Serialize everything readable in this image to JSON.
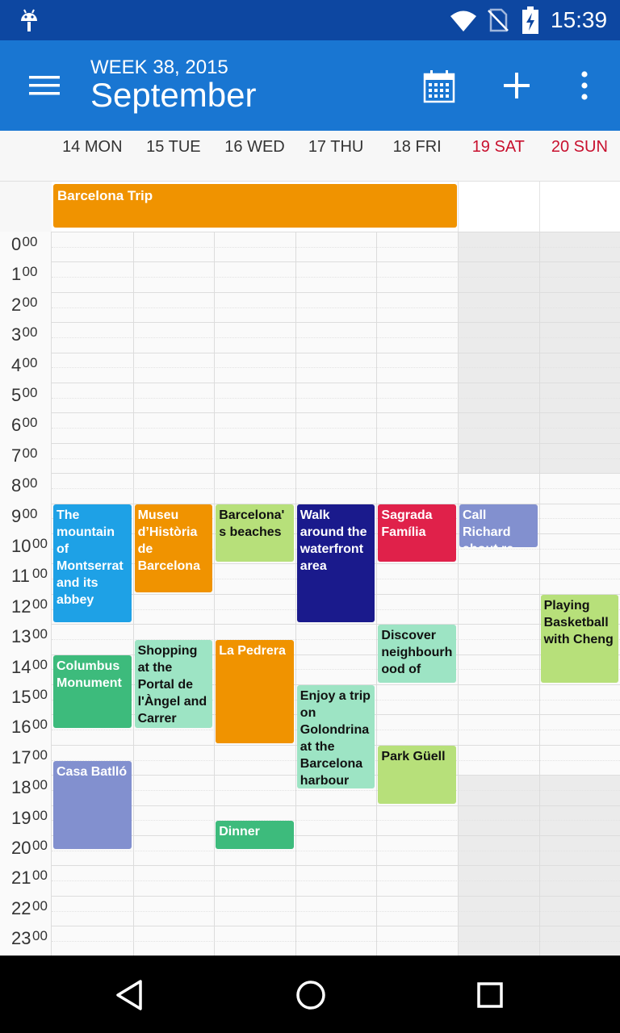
{
  "status_bar": {
    "time": "15:39"
  },
  "app_bar": {
    "subtitle": "WEEK 38, 2015",
    "title": "September"
  },
  "days": [
    {
      "label": "14 MON",
      "weekend": false
    },
    {
      "label": "15 TUE",
      "weekend": false
    },
    {
      "label": "16 WED",
      "weekend": false
    },
    {
      "label": "17 THU",
      "weekend": false
    },
    {
      "label": "18 FRI",
      "weekend": false
    },
    {
      "label": "19 SAT",
      "weekend": true
    },
    {
      "label": "20 SUN",
      "weekend": true
    }
  ],
  "all_day_events": [
    {
      "title": "Barcelona Trip",
      "start_day": 0,
      "end_day": 4,
      "color": "#f09300"
    }
  ],
  "hours": [
    {
      "h": "0",
      "m": "00"
    },
    {
      "h": "1",
      "m": "00"
    },
    {
      "h": "2",
      "m": "00"
    },
    {
      "h": "3",
      "m": "00"
    },
    {
      "h": "4",
      "m": "00"
    },
    {
      "h": "5",
      "m": "00"
    },
    {
      "h": "6",
      "m": "00"
    },
    {
      "h": "7",
      "m": "00"
    },
    {
      "h": "8",
      "m": "00"
    },
    {
      "h": "9",
      "m": "00"
    },
    {
      "h": "10",
      "m": "00"
    },
    {
      "h": "11",
      "m": "00"
    },
    {
      "h": "12",
      "m": "00"
    },
    {
      "h": "13",
      "m": "00"
    },
    {
      "h": "14",
      "m": "00"
    },
    {
      "h": "15",
      "m": "00"
    },
    {
      "h": "16",
      "m": "00"
    },
    {
      "h": "17",
      "m": "00"
    },
    {
      "h": "18",
      "m": "00"
    },
    {
      "h": "19",
      "m": "00"
    },
    {
      "h": "20",
      "m": "00"
    },
    {
      "h": "21",
      "m": "00"
    },
    {
      "h": "22",
      "m": "00"
    },
    {
      "h": "23",
      "m": "00"
    }
  ],
  "events": [
    {
      "day": 0,
      "start": 9.0,
      "end": 13.0,
      "title": "The mountain of Montserrat and its abbey",
      "color": "#1ea1e6",
      "text": "dark"
    },
    {
      "day": 0,
      "start": 14.0,
      "end": 16.5,
      "title": "Columbus Monument",
      "color": "#3dbb7c",
      "text": "dark"
    },
    {
      "day": 0,
      "start": 17.5,
      "end": 20.5,
      "title": "Casa Batlló",
      "color": "#8290cf",
      "text": "dark"
    },
    {
      "day": 1,
      "start": 9.0,
      "end": 12.0,
      "title": "Museu d’Història de Barcelona",
      "color": "#f09300",
      "text": "dark"
    },
    {
      "day": 1,
      "start": 13.5,
      "end": 16.5,
      "title": "Shopping at the Portal de l'Àngel and Carrer",
      "color": "#9de4c4",
      "text": "light"
    },
    {
      "day": 2,
      "start": 9.0,
      "end": 11.0,
      "title": "Barcelona's beaches",
      "color": "#b7e07a",
      "text": "light"
    },
    {
      "day": 2,
      "start": 13.5,
      "end": 17.0,
      "title": "La Pedrera",
      "color": "#f09300",
      "text": "dark"
    },
    {
      "day": 2,
      "start": 19.5,
      "end": 20.5,
      "title": "Dinner",
      "color": "#3dbb7c",
      "text": "dark"
    },
    {
      "day": 3,
      "start": 9.0,
      "end": 13.0,
      "title": "Walk around the waterfront area",
      "color": "#1a1a8c",
      "text": "dark"
    },
    {
      "day": 3,
      "start": 15.0,
      "end": 18.5,
      "title": "Enjoy a trip on Golondrina at the Barcelona harbour",
      "color": "#9de4c4",
      "text": "light"
    },
    {
      "day": 4,
      "start": 9.0,
      "end": 11.0,
      "title": "Sagrada Família",
      "color": "#e0214a",
      "text": "dark"
    },
    {
      "day": 4,
      "start": 13.0,
      "end": 15.0,
      "title": "Discover neighbourhood of",
      "color": "#9de4c4",
      "text": "light"
    },
    {
      "day": 4,
      "start": 17.0,
      "end": 19.0,
      "title": "Park Güell",
      "color": "#b7e07a",
      "text": "light"
    },
    {
      "day": 5,
      "start": 9.0,
      "end": 10.5,
      "title": "Call Richard about re",
      "color": "#8290cf",
      "text": "dark"
    },
    {
      "day": 6,
      "start": 12.0,
      "end": 15.0,
      "title": "Playing Basketball with Cheng",
      "color": "#b7e07a",
      "text": "light"
    }
  ]
}
